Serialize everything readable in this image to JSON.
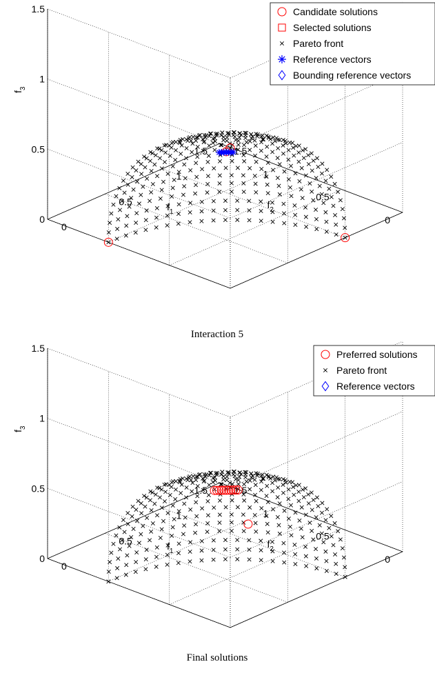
{
  "charts": [
    {
      "caption": "Interaction 5",
      "legend": [
        {
          "label": "Candidate solutions",
          "marker": "circle",
          "color": "#ff0000"
        },
        {
          "label": "Selected solutions",
          "marker": "square",
          "color": "#ff0000"
        },
        {
          "label": "Pareto front",
          "marker": "x",
          "color": "#000000"
        },
        {
          "label": "Reference vectors",
          "marker": "asterisk",
          "color": "#0000ff"
        },
        {
          "label": "Bounding reference vectors",
          "marker": "diamond",
          "color": "#0000ff"
        }
      ]
    },
    {
      "caption": "Final solutions",
      "legend": [
        {
          "label": "Preferred solutions",
          "marker": "circle",
          "color": "#ff0000"
        },
        {
          "label": "Pareto front",
          "marker": "x",
          "color": "#000000"
        },
        {
          "label": "Reference vectors",
          "marker": "diamond",
          "color": "#0000ff"
        }
      ]
    }
  ],
  "chart_data": [
    {
      "type": "scatter",
      "title": "Interaction 5",
      "xlabel": "f1",
      "ylabel": "f2",
      "zlabel": "f3",
      "xlim": [
        0,
        1.5
      ],
      "ylim": [
        0,
        1.5
      ],
      "zlim": [
        0,
        1.5
      ],
      "xticks": [
        "0",
        "0.5",
        "1",
        "1.5"
      ],
      "yticks": [
        "0",
        "0.5",
        "1",
        "1.5"
      ],
      "zticks": [
        "0",
        "0.5",
        "1",
        "1.5"
      ],
      "grid": true,
      "legend_position": "top-right",
      "pareto_front": "sphere octant, f1^2 + f2^2 + f3^2 = 1",
      "series": [
        {
          "name": "Candidate solutions",
          "points": [
            [
              0,
              0,
              1.0
            ],
            [
              1.0,
              0,
              0
            ],
            [
              0,
              1.0,
              0
            ],
            [
              0.577,
              0.577,
              0.577
            ]
          ]
        },
        {
          "name": "Reference vectors",
          "points": [
            [
              0.55,
              0.61,
              0.57
            ],
            [
              0.56,
              0.6,
              0.57
            ],
            [
              0.57,
              0.59,
              0.57
            ],
            [
              0.58,
              0.58,
              0.57
            ],
            [
              0.59,
              0.57,
              0.57
            ],
            [
              0.6,
              0.56,
              0.57
            ],
            [
              0.61,
              0.55,
              0.57
            ]
          ]
        }
      ]
    },
    {
      "type": "scatter",
      "title": "Final solutions",
      "xlabel": "f1",
      "ylabel": "f2",
      "zlabel": "f3",
      "xlim": [
        0,
        1.5
      ],
      "ylim": [
        0,
        1.5
      ],
      "zlim": [
        0,
        1.5
      ],
      "xticks": [
        "0",
        "0.5",
        "1",
        "1.5"
      ],
      "yticks": [
        "0",
        "0.5",
        "1",
        "1.5"
      ],
      "zticks": [
        "0",
        "0.5",
        "1",
        "1.5"
      ],
      "grid": true,
      "legend_position": "top-right",
      "pareto_front": "sphere octant, f1^2 + f2^2 + f3^2 = 1",
      "series": [
        {
          "name": "Preferred solutions",
          "points": [
            [
              0.53,
              0.63,
              0.58
            ],
            [
              0.54,
              0.62,
              0.58
            ],
            [
              0.55,
              0.61,
              0.58
            ],
            [
              0.56,
              0.6,
              0.58
            ],
            [
              0.57,
              0.59,
              0.58
            ],
            [
              0.58,
              0.58,
              0.58
            ],
            [
              0.59,
              0.57,
              0.58
            ],
            [
              0.6,
              0.56,
              0.58
            ],
            [
              0.61,
              0.55,
              0.58
            ],
            [
              0.62,
              0.54,
              0.58
            ],
            [
              0.63,
              0.53,
              0.58
            ],
            [
              0.77,
              0.58,
              0.27
            ]
          ]
        }
      ]
    }
  ]
}
